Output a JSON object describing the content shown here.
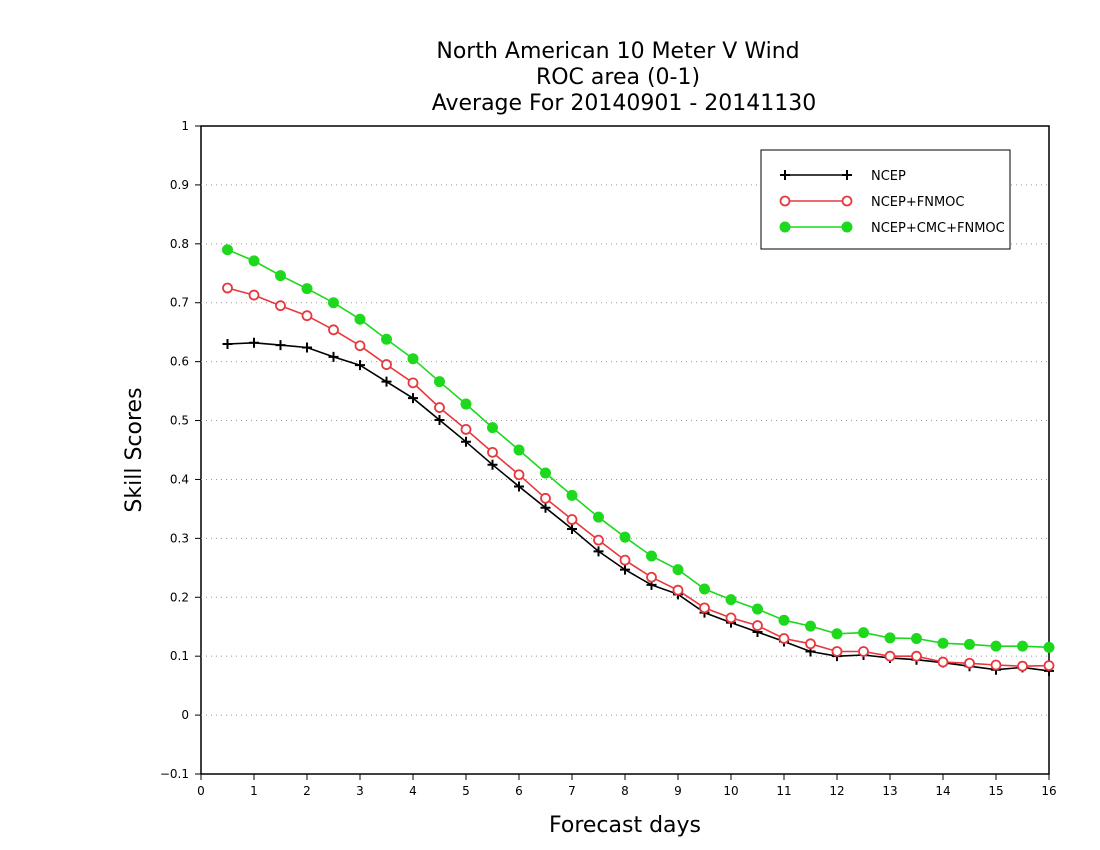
{
  "chart_data": {
    "type": "line",
    "title_lines": [
      "North American 10 Meter V Wind",
      "ROC area (0-1)",
      "Average For 20140901 - 20141130"
    ],
    "xlabel": "Forecast days",
    "ylabel": "Skill Scores",
    "xlim": [
      0,
      16
    ],
    "ylim": [
      -0.1,
      1
    ],
    "x_ticks": [
      "0",
      "1",
      "2",
      "3",
      "4",
      "5",
      "6",
      "7",
      "8",
      "9",
      "10",
      "11",
      "12",
      "13",
      "14",
      "15",
      "16"
    ],
    "y_ticks": [
      "−0.1",
      "0",
      "0.1",
      "0.2",
      "0.3",
      "0.4",
      "0.5",
      "0.6",
      "0.7",
      "0.8",
      "0.9",
      "1"
    ],
    "grid": "horizontal dotted",
    "legend_position": "top-right",
    "x": [
      0.5,
      1,
      1.5,
      2,
      2.5,
      3,
      3.5,
      4,
      4.5,
      5,
      5.5,
      6,
      6.5,
      7,
      7.5,
      8,
      8.5,
      9,
      9.5,
      10,
      10.5,
      11,
      11.5,
      12,
      12.5,
      13,
      13.5,
      14,
      14.5,
      15,
      15.5,
      16
    ],
    "series": [
      {
        "name": "NCEP",
        "color": "#000000",
        "marker": "plus",
        "values": [
          0.63,
          0.632,
          0.628,
          0.624,
          0.608,
          0.594,
          0.566,
          0.538,
          0.501,
          0.464,
          0.425,
          0.388,
          0.352,
          0.316,
          0.278,
          0.247,
          0.221,
          0.205,
          0.174,
          0.157,
          0.141,
          0.125,
          0.108,
          0.1,
          0.102,
          0.097,
          0.094,
          0.089,
          0.083,
          0.077,
          0.081,
          0.075
        ]
      },
      {
        "name": "NCEP+FNMOC",
        "color": "#e8383d",
        "marker": "open-circle",
        "values": [
          0.725,
          0.713,
          0.695,
          0.678,
          0.654,
          0.627,
          0.595,
          0.564,
          0.522,
          0.485,
          0.446,
          0.408,
          0.368,
          0.332,
          0.297,
          0.263,
          0.234,
          0.212,
          0.182,
          0.165,
          0.152,
          0.13,
          0.121,
          0.108,
          0.108,
          0.1,
          0.1,
          0.09,
          0.088,
          0.085,
          0.083,
          0.084
        ]
      },
      {
        "name": "NCEP+CMC+FNMOC",
        "color": "#1ed81e",
        "marker": "filled-circle",
        "values": [
          0.79,
          0.771,
          0.746,
          0.724,
          0.7,
          0.672,
          0.638,
          0.605,
          0.566,
          0.528,
          0.488,
          0.45,
          0.411,
          0.373,
          0.336,
          0.302,
          0.27,
          0.247,
          0.214,
          0.196,
          0.18,
          0.161,
          0.151,
          0.138,
          0.14,
          0.131,
          0.13,
          0.122,
          0.12,
          0.117,
          0.117,
          0.115
        ]
      }
    ]
  }
}
